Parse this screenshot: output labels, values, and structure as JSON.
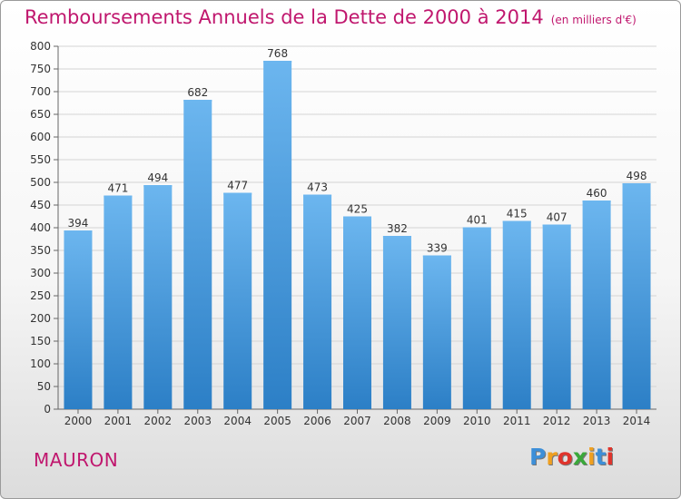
{
  "title": {
    "main": "Remboursements Annuels de la Dette de 2000 à 2014",
    "unit": "(en milliers d'€)"
  },
  "town": "MAURON",
  "logo": {
    "letters": [
      "P",
      "r",
      "o",
      "x",
      "i",
      "t",
      "i"
    ],
    "colors": [
      "#3d8fd8",
      "#f0a020",
      "#e0342c",
      "#3aa83a",
      "#f0a020",
      "#3d8fd8",
      "#e0342c"
    ]
  },
  "colors": {
    "bar": "#3f97dd",
    "bar_light": "#6cb6ef",
    "bar_dark": "#2c7fc6",
    "grid": "#d4d4d4",
    "text_red": "#c0176e"
  },
  "chart_data": {
    "type": "bar",
    "title": "Remboursements Annuels de la Dette de 2000 à 2014",
    "xlabel": "",
    "ylabel": "",
    "categories": [
      "2000",
      "2001",
      "2002",
      "2003",
      "2004",
      "2005",
      "2006",
      "2007",
      "2008",
      "2009",
      "2010",
      "2011",
      "2012",
      "2013",
      "2014"
    ],
    "values": [
      394,
      471,
      494,
      682,
      477,
      768,
      473,
      425,
      382,
      339,
      401,
      415,
      407,
      460,
      498
    ],
    "ylim": [
      0,
      800
    ],
    "yticks": [
      0,
      50,
      100,
      150,
      200,
      250,
      300,
      350,
      400,
      450,
      500,
      550,
      600,
      650,
      700,
      750,
      800
    ],
    "grid": true
  }
}
